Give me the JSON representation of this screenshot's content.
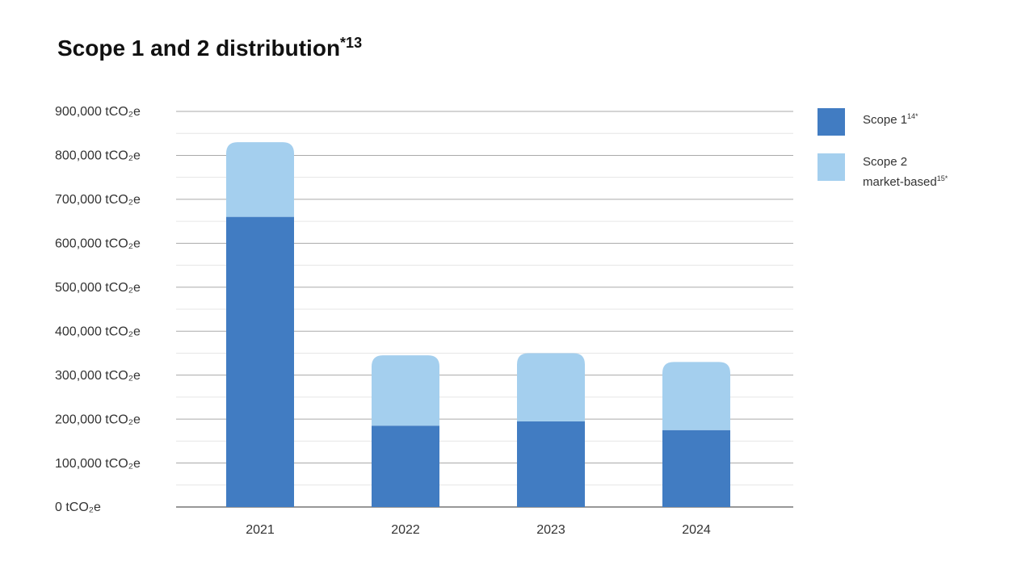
{
  "chart_data": {
    "type": "stacked_bar",
    "title": "Scope 1 and 2 distribution",
    "title_note": "*13",
    "categories": [
      "2021",
      "2022",
      "2023",
      "2024"
    ],
    "series": [
      {
        "name": "Scope 1",
        "note": "14*",
        "color": "#417cc2",
        "values": [
          660000,
          185000,
          195000,
          175000
        ]
      },
      {
        "name": "Scope 2 market-based",
        "note": "15*",
        "color": "#a4cfee",
        "values": [
          170000,
          160000,
          155000,
          155000
        ]
      }
    ],
    "ylim": [
      0,
      900000
    ],
    "yticks": [
      {
        "value": 0,
        "label": "0 tCO₂e"
      },
      {
        "value": 100000,
        "label": "100,000 tCO₂e"
      },
      {
        "value": 200000,
        "label": "200,000 tCO₂e"
      },
      {
        "value": 300000,
        "label": "300,000 tCO₂e"
      },
      {
        "value": 400000,
        "label": "400,000 tCO₂e"
      },
      {
        "value": 500000,
        "label": "500,000 tCO₂e"
      },
      {
        "value": 600000,
        "label": "600,000 tCO₂e"
      },
      {
        "value": 700000,
        "label": "700,000 tCO₂e"
      },
      {
        "value": 800000,
        "label": "800,000 tCO₂e"
      },
      {
        "value": 900000,
        "label": "900,000 tCO₂e"
      }
    ],
    "minor_yticks": [
      50000,
      150000,
      250000,
      350000,
      450000,
      550000,
      650000,
      750000,
      850000
    ],
    "grid": true,
    "legend": "right"
  }
}
